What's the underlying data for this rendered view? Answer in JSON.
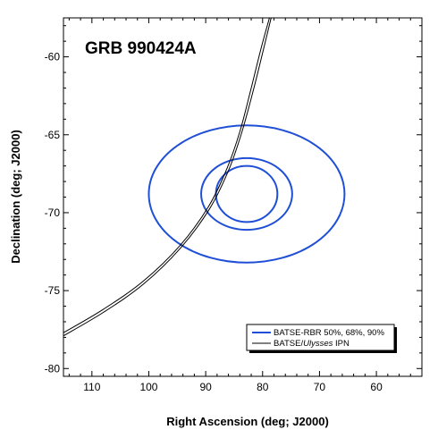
{
  "chart_data": {
    "type": "line",
    "title": "GRB 990424A",
    "xlabel": "Right Ascension (deg; J2000)",
    "ylabel": "Declination (deg; J2000)",
    "xlim": [
      115,
      52
    ],
    "ylim": [
      -80.5,
      -57.5
    ],
    "x_reversed": true,
    "grid": false,
    "x_major_ticks": [
      110,
      100,
      90,
      80,
      70,
      60
    ],
    "x_minor_step": 2,
    "y_major_ticks": [
      -60,
      -65,
      -70,
      -75,
      -80
    ],
    "y_minor_step": 1,
    "legend_placement": "bottom-right",
    "colors": {
      "rbr": "#1f4fd6",
      "ipn": "#000000"
    },
    "legend": {
      "rbr_label": "BATSE-RBR 50%, 68%, 90%",
      "ipn_prefix": "BATSE/",
      "ipn_italic": "Ulysses",
      "ipn_suffix": " IPN"
    },
    "series": [
      {
        "kind": "rbr-contours",
        "legend_entry": "BATSE-RBR 50%, 68%, 90%",
        "center": [
          82.8,
          -68.8
        ],
        "contours": [
          {
            "level": "50%",
            "ra_radius": 5.4,
            "dec_radius": 1.8
          },
          {
            "level": "68%",
            "ra_radius": 8.0,
            "dec_radius": 2.3
          },
          {
            "level": "90%",
            "ra_radius": 17.2,
            "dec_radius": 4.4
          }
        ]
      },
      {
        "kind": "ipn-annulus",
        "legend_entry": "BATSE/Ulysses IPN",
        "curves": [
          {
            "points": [
              [
                115.0,
                -77.7
              ],
              [
                108.0,
                -76.2
              ],
              [
                101.0,
                -74.4
              ],
              [
                94.5,
                -72.1
              ],
              [
                89.5,
                -69.6
              ],
              [
                86.3,
                -67.2
              ],
              [
                84.0,
                -64.8
              ],
              [
                82.0,
                -62.0
              ],
              [
                80.3,
                -59.5
              ],
              [
                78.8,
                -57.5
              ]
            ]
          },
          {
            "points": [
              [
                115.0,
                -77.9
              ],
              [
                108.0,
                -76.4
              ],
              [
                101.0,
                -74.6
              ],
              [
                94.5,
                -72.3
              ],
              [
                89.4,
                -69.8
              ],
              [
                86.0,
                -67.3
              ],
              [
                83.7,
                -64.9
              ],
              [
                81.6,
                -62.1
              ],
              [
                79.9,
                -59.6
              ],
              [
                78.5,
                -57.5
              ]
            ]
          }
        ]
      }
    ]
  }
}
